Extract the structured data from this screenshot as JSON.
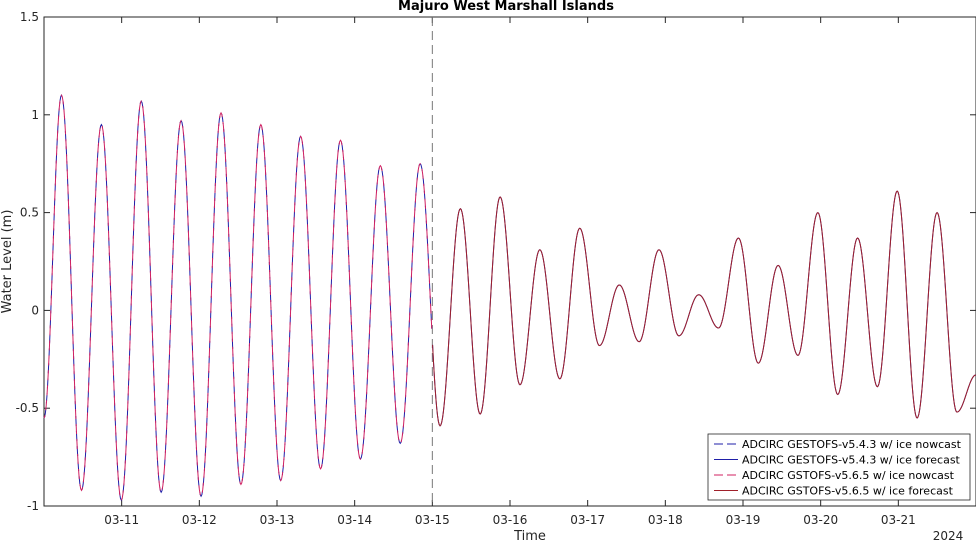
{
  "chart_data": {
    "type": "line",
    "title": "Majuro West Marshall Islands",
    "xlabel": "Time",
    "ylabel": "Water Level (m)",
    "year_label": "2024",
    "ylim": [
      -1,
      1.5
    ],
    "yticks": [
      -1,
      -0.5,
      0,
      0.5,
      1,
      1.5
    ],
    "ytick_labels": [
      "-1",
      "-0.5",
      "0",
      "0.5",
      "1",
      "1.5"
    ],
    "xlim": [
      "2024-03-10 00:00",
      "2024-03-22 00:00"
    ],
    "xticks": [
      "2024-03-11",
      "2024-03-12",
      "2024-03-13",
      "2024-03-14",
      "2024-03-15",
      "2024-03-16",
      "2024-03-17",
      "2024-03-18",
      "2024-03-19",
      "2024-03-20",
      "2024-03-21"
    ],
    "xtick_labels": [
      "03-11",
      "03-12",
      "03-13",
      "03-14",
      "03-15",
      "03-16",
      "03-17",
      "03-18",
      "03-19",
      "03-20",
      "03-21"
    ],
    "nowcast_forecast_divider": "2024-03-15 00:00",
    "legend_position": "bottom-right",
    "grid": false,
    "extrema": {
      "x": [
        "2024-03-10 00:00",
        "2024-03-10 05:24",
        "2024-03-10 11:35",
        "2024-03-10 17:44",
        "2024-03-10 23:54",
        "2024-03-11 06:03",
        "2024-03-11 12:12",
        "2024-03-11 18:22",
        "2024-03-12 00:32",
        "2024-03-12 06:42",
        "2024-03-12 12:51",
        "2024-03-12 19:00",
        "2024-03-13 01:09",
        "2024-03-13 07:18",
        "2024-03-13 13:28",
        "2024-03-13 19:37",
        "2024-03-14 01:46",
        "2024-03-14 07:56",
        "2024-03-14 14:05",
        "2024-03-14 20:14",
        "2024-03-15 02:23",
        "2024-03-15 08:40",
        "2024-03-15 14:47",
        "2024-03-15 20:57",
        "2024-03-16 03:05",
        "2024-03-16 09:13",
        "2024-03-16 15:24",
        "2024-03-16 21:33",
        "2024-03-17 03:39",
        "2024-03-17 09:47",
        "2024-03-17 15:55",
        "2024-03-17 22:02",
        "2024-03-18 04:11",
        "2024-03-18 10:19",
        "2024-03-18 16:27",
        "2024-03-18 22:36",
        "2024-03-19 04:44",
        "2024-03-19 10:51",
        "2024-03-19 16:59",
        "2024-03-19 23:08",
        "2024-03-20 05:16",
        "2024-03-20 11:25",
        "2024-03-20 17:32",
        "2024-03-20 23:39",
        "2024-03-21 05:48",
        "2024-03-21 11:58",
        "2024-03-21 18:06",
        "2024-03-21 23:59"
      ],
      "y": [
        -0.55,
        1.1,
        -0.92,
        0.95,
        -0.97,
        1.07,
        -0.93,
        0.97,
        -0.95,
        1.01,
        -0.89,
        0.95,
        -0.87,
        0.89,
        -0.81,
        0.87,
        -0.76,
        0.74,
        -0.68,
        0.75,
        -0.59,
        0.52,
        -0.53,
        0.58,
        -0.38,
        0.31,
        -0.35,
        0.42,
        -0.18,
        0.13,
        -0.16,
        0.31,
        -0.13,
        0.08,
        -0.09,
        0.37,
        -0.27,
        0.23,
        -0.23,
        0.5,
        -0.43,
        0.37,
        -0.39,
        0.61,
        -0.55,
        0.5,
        -0.52,
        -0.33
      ]
    },
    "series": [
      {
        "name": "ADCIRC GESTOFS-v5.4.3 w/ ice nowcast",
        "color": "#1f1fa8",
        "style": "dashed",
        "range": [
          "2024-03-10 00:00",
          "2024-03-15 00:00"
        ]
      },
      {
        "name": "ADCIRC GESTOFS-v5.4.3 w/ ice forecast",
        "color": "#1f1fa8",
        "style": "solid",
        "range": [
          "2024-03-15 00:00",
          "2024-03-22 00:00"
        ]
      },
      {
        "name": "ADCIRC GSTOFS-v5.6.5 w/ ice nowcast",
        "color": "#d02060",
        "style": "dashed",
        "range": [
          "2024-03-10 00:00",
          "2024-03-15 00:00"
        ]
      },
      {
        "name": "ADCIRC GSTOFS-v5.6.5 w/ ice forecast",
        "color": "#a0202a",
        "style": "solid",
        "range": [
          "2024-03-15 00:00",
          "2024-03-22 00:00"
        ]
      }
    ]
  }
}
